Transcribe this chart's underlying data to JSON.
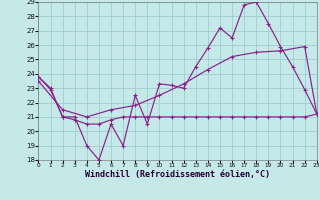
{
  "background_color": "#c5e8e8",
  "grid_color": "#9ecece",
  "line_color": "#882288",
  "xlabel": "Windchill (Refroidissement éolien,°C)",
  "xlabel_fontsize": 6.0,
  "xlim": [
    0,
    23
  ],
  "ylim": [
    18,
    29
  ],
  "xticks": [
    0,
    1,
    2,
    3,
    4,
    5,
    6,
    7,
    8,
    9,
    10,
    11,
    12,
    13,
    14,
    15,
    16,
    17,
    18,
    19,
    20,
    21,
    22,
    23
  ],
  "yticks": [
    18,
    19,
    20,
    21,
    22,
    23,
    24,
    25,
    26,
    27,
    28,
    29
  ],
  "line1_x": [
    0,
    1,
    2,
    3,
    4,
    5,
    6,
    7,
    8,
    9,
    10,
    11,
    12,
    13,
    14,
    15,
    16,
    17,
    18,
    19,
    20,
    21,
    22,
    23
  ],
  "line1_y": [
    23.8,
    22.9,
    21.0,
    21.0,
    19.0,
    18.0,
    20.5,
    19.0,
    22.5,
    20.5,
    23.3,
    23.2,
    23.0,
    24.5,
    25.8,
    27.2,
    26.5,
    28.8,
    29.0,
    27.5,
    25.9,
    24.5,
    22.9,
    21.2
  ],
  "line2_x": [
    0,
    1,
    2,
    3,
    4,
    5,
    6,
    7,
    8,
    9,
    10,
    11,
    12,
    13,
    14,
    15,
    16,
    17,
    18,
    19,
    20,
    21,
    22,
    23
  ],
  "line2_y": [
    23.8,
    23.0,
    21.0,
    20.8,
    20.5,
    20.5,
    20.8,
    21.0,
    21.0,
    21.0,
    21.0,
    21.0,
    21.0,
    21.0,
    21.0,
    21.0,
    21.0,
    21.0,
    21.0,
    21.0,
    21.0,
    21.0,
    21.0,
    21.2
  ],
  "line3_x": [
    0,
    2,
    4,
    6,
    8,
    10,
    12,
    14,
    16,
    18,
    20,
    22,
    23
  ],
  "line3_y": [
    23.5,
    21.5,
    21.0,
    21.5,
    21.8,
    22.5,
    23.3,
    24.3,
    25.2,
    25.5,
    25.6,
    25.9,
    21.2
  ]
}
